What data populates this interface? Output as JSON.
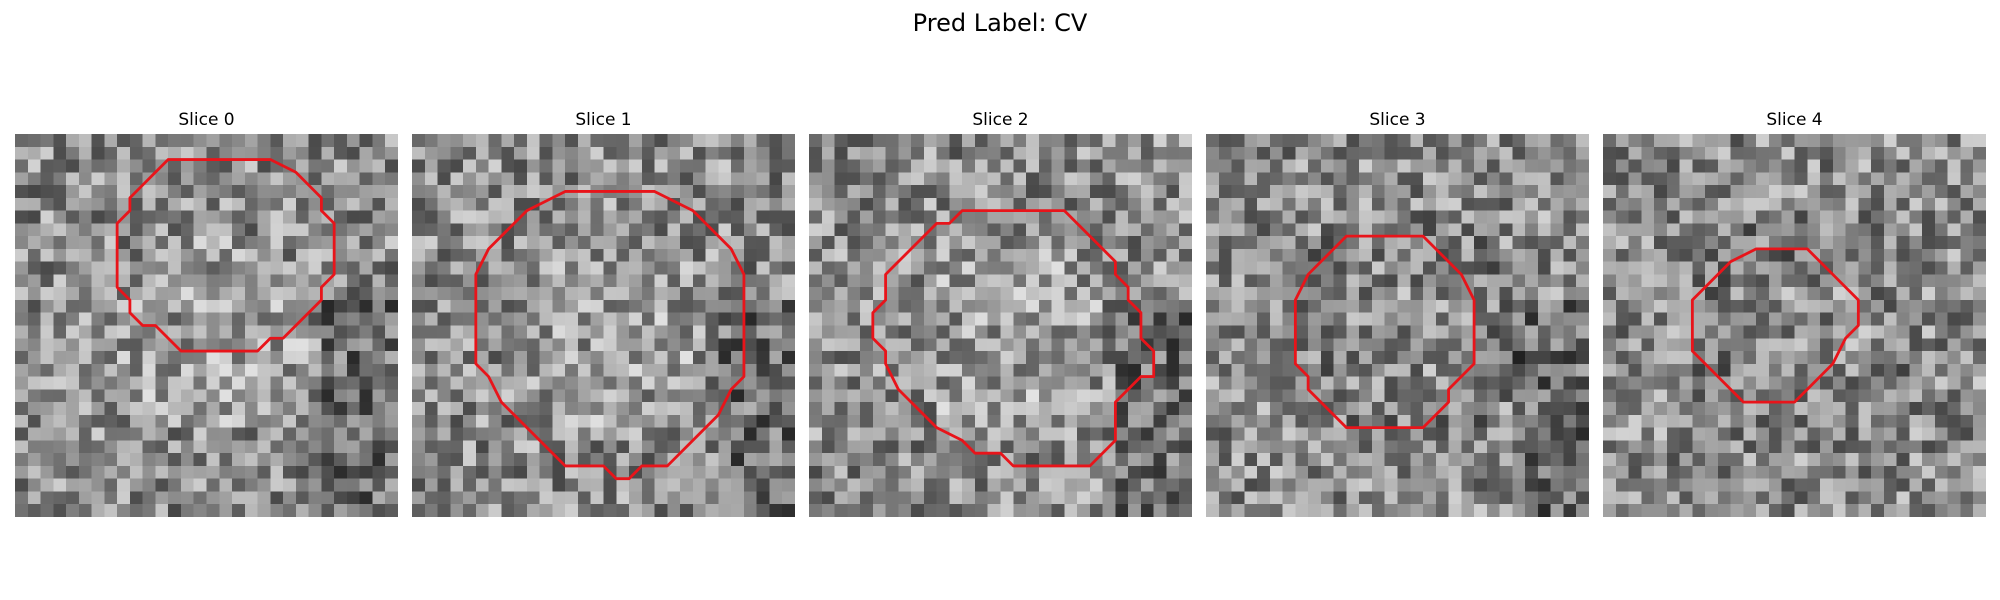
{
  "figure": {
    "title": "Pred Label: CV",
    "contour_color": "#e8141a"
  },
  "slices": [
    {
      "title": "Slice 0",
      "seed": 11,
      "bright_center": true,
      "dark_right": true,
      "contour": [
        [
          14,
          2
        ],
        [
          17,
          2
        ],
        [
          19,
          3
        ],
        [
          20,
          4
        ],
        [
          21,
          5
        ],
        [
          21,
          6
        ],
        [
          22,
          7
        ],
        [
          22,
          11
        ],
        [
          21,
          12
        ],
        [
          21,
          13
        ],
        [
          19,
          15
        ],
        [
          18,
          16
        ],
        [
          17,
          16
        ],
        [
          16,
          17
        ],
        [
          10,
          17
        ],
        [
          8,
          15
        ],
        [
          7,
          15
        ],
        [
          6,
          14
        ],
        [
          6,
          13
        ],
        [
          5,
          12
        ],
        [
          5,
          7
        ],
        [
          6,
          6
        ],
        [
          6,
          5
        ],
        [
          7,
          4
        ],
        [
          8,
          3
        ],
        [
          9,
          2
        ]
      ]
    },
    {
      "title": "Slice 1",
      "seed": 23,
      "bright_center": true,
      "dark_right": true,
      "contour": [
        [
          13,
          -0.5
        ],
        [
          16,
          -0.5
        ],
        [
          18,
          0.5
        ],
        [
          19,
          1
        ],
        [
          20,
          2
        ],
        [
          21,
          3
        ],
        [
          22,
          4
        ],
        [
          23,
          6
        ],
        [
          23,
          14
        ],
        [
          22,
          15
        ],
        [
          21,
          17
        ],
        [
          20,
          18
        ],
        [
          19,
          19
        ],
        [
          17,
          21
        ],
        [
          15,
          21
        ],
        [
          14,
          22
        ],
        [
          13,
          22
        ],
        [
          12,
          21
        ],
        [
          9,
          21
        ],
        [
          8,
          20
        ],
        [
          7,
          19
        ],
        [
          5,
          17
        ],
        [
          4,
          16
        ],
        [
          3,
          14
        ],
        [
          2,
          13
        ],
        [
          2,
          6
        ],
        [
          3,
          4
        ],
        [
          4,
          3
        ],
        [
          5,
          2
        ],
        [
          6,
          1
        ],
        [
          8,
          0
        ],
        [
          9,
          -0.5
        ]
      ]
    },
    {
      "title": "Slice 2",
      "seed": 37,
      "bright_center": true,
      "dark_right": true,
      "contour": [
        [
          9,
          0
        ],
        [
          17,
          0
        ],
        [
          18,
          1
        ],
        [
          19,
          2
        ],
        [
          20,
          3
        ],
        [
          21,
          4
        ],
        [
          21,
          5
        ],
        [
          22,
          6
        ],
        [
          22,
          7
        ],
        [
          23,
          8
        ],
        [
          23,
          10
        ],
        [
          24,
          11
        ],
        [
          24,
          13
        ],
        [
          23,
          13
        ],
        [
          22,
          14
        ],
        [
          21,
          15
        ],
        [
          21,
          18
        ],
        [
          20,
          19
        ],
        [
          19,
          20
        ],
        [
          13,
          20
        ],
        [
          12,
          19
        ],
        [
          10,
          19
        ],
        [
          9,
          18
        ],
        [
          7,
          17
        ],
        [
          6,
          16
        ],
        [
          5,
          15
        ],
        [
          4,
          14
        ],
        [
          3,
          12
        ],
        [
          3,
          11
        ],
        [
          2,
          10
        ],
        [
          2,
          8
        ],
        [
          3,
          7
        ],
        [
          3,
          5
        ],
        [
          4,
          4
        ],
        [
          5,
          3
        ],
        [
          6,
          2
        ],
        [
          7,
          1
        ],
        [
          8,
          1
        ]
      ]
    },
    {
      "title": "Slice 3",
      "seed": 53,
      "bright_center": false,
      "dark_right": true,
      "contour": [
        [
          8,
          3
        ],
        [
          14,
          3
        ],
        [
          15,
          4
        ],
        [
          16,
          5
        ],
        [
          17,
          6
        ],
        [
          18,
          8
        ],
        [
          18,
          13
        ],
        [
          16,
          15
        ],
        [
          16,
          16
        ],
        [
          15,
          17
        ],
        [
          14,
          18
        ],
        [
          8,
          18
        ],
        [
          7,
          17
        ],
        [
          6,
          16
        ],
        [
          5,
          15
        ],
        [
          5,
          14
        ],
        [
          4,
          13
        ],
        [
          4,
          8
        ],
        [
          5,
          6
        ],
        [
          6,
          5
        ],
        [
          7,
          4
        ]
      ]
    },
    {
      "title": "Slice 4",
      "seed": 71,
      "bright_center": false,
      "dark_right": false,
      "contour": [
        [
          9,
          4
        ],
        [
          13,
          4
        ],
        [
          15,
          6
        ],
        [
          17,
          8
        ],
        [
          17,
          10
        ],
        [
          16,
          11
        ],
        [
          15,
          13
        ],
        [
          14,
          14
        ],
        [
          13,
          15
        ],
        [
          12,
          16
        ],
        [
          8,
          16
        ],
        [
          6,
          14
        ],
        [
          5,
          13
        ],
        [
          4,
          12
        ],
        [
          4,
          8
        ],
        [
          5,
          7
        ],
        [
          7,
          5
        ]
      ]
    }
  ]
}
